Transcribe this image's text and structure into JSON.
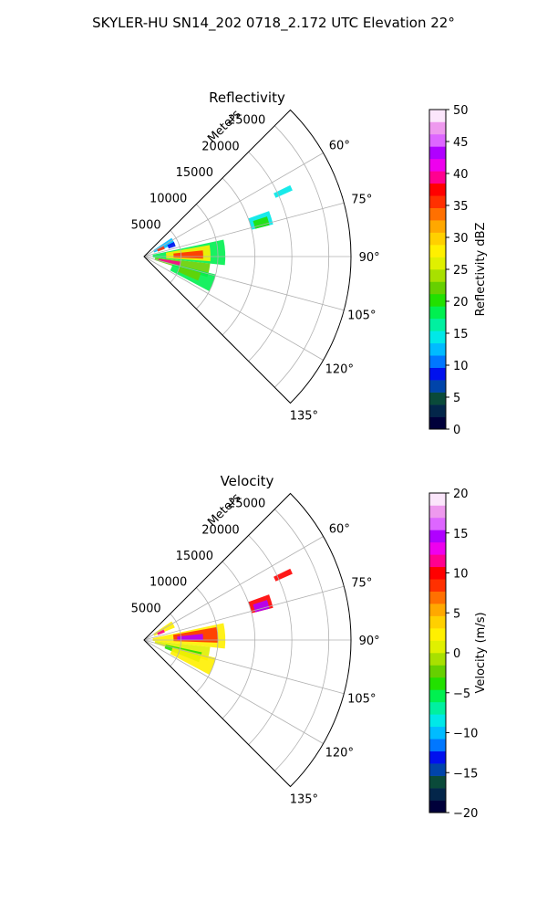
{
  "figure": {
    "title": "SKYLER-HU  SN14_202  0718_2.172 UTC Elevation 22°"
  },
  "chart_data": [
    {
      "type": "polar_sector_heatmap",
      "title": "Reflectivity",
      "range_label": "Meters",
      "range_ticks": [
        "5000",
        "10000",
        "15000",
        "20000",
        "25000"
      ],
      "range_tick_values": [
        5000,
        10000,
        15000,
        20000,
        25000
      ],
      "rmax": 28000,
      "angle_ticks": [
        "60°",
        "75°",
        "90°",
        "105°",
        "120°",
        "135°"
      ],
      "angle_tick_values": [
        60,
        75,
        90,
        105,
        120,
        135
      ],
      "theta_range": [
        45,
        135
      ],
      "grid": true,
      "colorbar": {
        "label": "Reflectivity dBZ",
        "ticks": [
          "0",
          "5",
          "10",
          "15",
          "20",
          "25",
          "30",
          "35",
          "40",
          "45",
          "50"
        ],
        "range": [
          0,
          50
        ],
        "colors": [
          "#00003a",
          "#03264a",
          "#0a4a3a",
          "#0044aa",
          "#0011ee",
          "#0077ff",
          "#00bbff",
          "#00e8e8",
          "#00f0a0",
          "#00f050",
          "#22e000",
          "#66d000",
          "#a8e000",
          "#e0f000",
          "#fff000",
          "#ffd000",
          "#ffa800",
          "#ff7000",
          "#ff3000",
          "#ff0000",
          "#ff0090",
          "#ee00ee",
          "#b000ff",
          "#dd66ff",
          "#ee99ee",
          "#fbe6fb"
        ]
      },
      "echo_regions": [
        {
          "theta": [
            56,
            68
          ],
          "r": [
            1500,
            4500
          ],
          "value": 12
        },
        {
          "theta": [
            62,
            70
          ],
          "r": [
            2000,
            3000
          ],
          "value": 35
        },
        {
          "theta": [
            64,
            72
          ],
          "r": [
            3500,
            4500
          ],
          "value": 8
        },
        {
          "theta": [
            78,
            96
          ],
          "r": [
            1200,
            11000
          ],
          "value": 18
        },
        {
          "theta": [
            80,
            94
          ],
          "r": [
            3000,
            9000
          ],
          "value": 27
        },
        {
          "theta": [
            84,
            92
          ],
          "r": [
            4000,
            8000
          ],
          "value": 36
        },
        {
          "theta": [
            96,
            108
          ],
          "r": [
            1500,
            9000
          ],
          "value": 22
        },
        {
          "theta": [
            98,
            104
          ],
          "r": [
            2000,
            5000
          ],
          "value": 40
        },
        {
          "theta": [
            104,
            118
          ],
          "r": [
            4000,
            10000
          ],
          "value": 18
        },
        {
          "theta": [
            106,
            114
          ],
          "r": [
            5000,
            8000
          ],
          "value": 23
        },
        {
          "theta": [
            70,
            76
          ],
          "r": [
            15000,
            18000
          ],
          "value": 14
        },
        {
          "theta": [
            72,
            76
          ],
          "r": [
            15500,
            17500
          ],
          "value": 20
        },
        {
          "theta": [
            64,
            66
          ],
          "r": [
            19500,
            22000
          ],
          "value": 14
        }
      ]
    },
    {
      "type": "polar_sector_heatmap",
      "title": "Velocity",
      "range_label": "Meters",
      "range_ticks": [
        "5000",
        "10000",
        "15000",
        "20000",
        "25000"
      ],
      "range_tick_values": [
        5000,
        10000,
        15000,
        20000,
        25000
      ],
      "rmax": 28000,
      "angle_ticks": [
        "60°",
        "75°",
        "90°",
        "105°",
        "120°",
        "135°"
      ],
      "angle_tick_values": [
        60,
        75,
        90,
        105,
        120,
        135
      ],
      "theta_range": [
        45,
        135
      ],
      "grid": true,
      "colorbar": {
        "label": "Velocity (m/s)",
        "ticks": [
          "−20",
          "−15",
          "−10",
          "−5",
          "0",
          "5",
          "10",
          "15",
          "20"
        ],
        "range": [
          -20,
          20
        ],
        "colors": [
          "#00003a",
          "#03264a",
          "#0a4a3a",
          "#0044aa",
          "#0011ee",
          "#0077ff",
          "#00bbff",
          "#00e8e8",
          "#00f0a0",
          "#00f050",
          "#22e000",
          "#66d000",
          "#a8e000",
          "#e0f000",
          "#fff000",
          "#ffd000",
          "#ffa800",
          "#ff7000",
          "#ff3000",
          "#ff0000",
          "#ff0090",
          "#ee00ee",
          "#b000ff",
          "#dd66ff",
          "#ee99ee",
          "#fbe6fb"
        ]
      },
      "echo_regions": [
        {
          "theta": [
            56,
            68
          ],
          "r": [
            1500,
            4500
          ],
          "value": 3
        },
        {
          "theta": [
            62,
            70
          ],
          "r": [
            2000,
            3000
          ],
          "value": 12
        },
        {
          "theta": [
            78,
            96
          ],
          "r": [
            1200,
            11000
          ],
          "value": 2
        },
        {
          "theta": [
            80,
            92
          ],
          "r": [
            4000,
            10000
          ],
          "value": 8
        },
        {
          "theta": [
            84,
            90
          ],
          "r": [
            4500,
            8000
          ],
          "value": 14
        },
        {
          "theta": [
            96,
            108
          ],
          "r": [
            1500,
            9000
          ],
          "value": 0
        },
        {
          "theta": [
            102,
            112
          ],
          "r": [
            3000,
            8000
          ],
          "value": -4
        },
        {
          "theta": [
            104,
            118
          ],
          "r": [
            4000,
            10000
          ],
          "value": 2
        },
        {
          "theta": [
            70,
            76
          ],
          "r": [
            15000,
            18000
          ],
          "value": 10
        },
        {
          "theta": [
            72,
            76
          ],
          "r": [
            15500,
            17500
          ],
          "value": 15
        },
        {
          "theta": [
            64,
            66
          ],
          "r": [
            19500,
            22000
          ],
          "value": 10
        }
      ]
    }
  ]
}
